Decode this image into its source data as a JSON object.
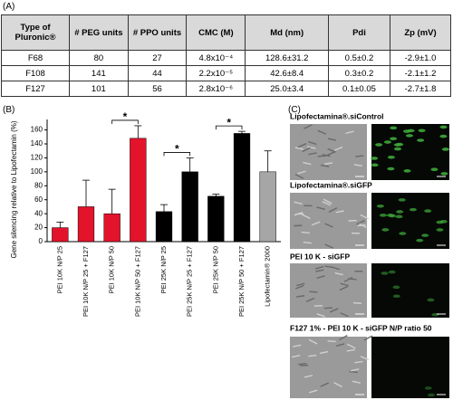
{
  "panels": [
    "(A)",
    "(B)",
    "(C)"
  ],
  "table": {
    "header": [
      "Type of Pluronic®",
      "# PEG units",
      "# PPO units",
      "CMC (M)",
      "Md (nm)",
      "Pdi",
      "Zp (mV)"
    ],
    "rows": [
      [
        "F68",
        "80",
        "27",
        "4.8x10⁻⁴",
        "128.6±31.2",
        "0.5±0.2",
        "-2.9±1.0"
      ],
      [
        "F108",
        "141",
        "44",
        "2.2x10⁻⁵",
        "42.6±8.4",
        "0.3±0.2",
        "-2.1±1.2"
      ],
      [
        "F127",
        "101",
        "56",
        "2.8x10⁻⁶",
        "25.0±3.4",
        "0.1±0.05",
        "-2.7±1.8"
      ]
    ]
  },
  "chart_data": {
    "type": "bar",
    "y_label": "Gene silencing relative  to Lipofectamin (%)",
    "categories": [
      "PEI 10K N/P 25",
      "PEI 10K N/P 25 + F127",
      "PEI 10K N/P 50",
      "PEI 10K N/P 50 + F127",
      "PEI 25K N/P 25",
      "PEI 25K N/P 25 + F127",
      "PEI 25K N/P 50",
      "PEI 25K N/P 50 + F127",
      "Lipofectamin® 2000"
    ],
    "values": [
      20,
      50,
      40,
      148,
      43,
      100,
      65,
      155,
      100
    ],
    "errors": [
      8,
      38,
      35,
      18,
      10,
      20,
      3,
      3,
      30
    ],
    "colors": [
      "#e3132b",
      "#e3132b",
      "#e3132b",
      "#e3132b",
      "#000000",
      "#000000",
      "#000000",
      "#000000",
      "#a6a6a6"
    ],
    "ylim": [
      0,
      175
    ],
    "yticks": [
      0,
      20,
      40,
      60,
      80,
      100,
      120,
      140,
      160
    ],
    "annotations": [
      {
        "text": "*",
        "from": 2,
        "to": 3
      },
      {
        "text": "*",
        "from": 4,
        "to": 5
      },
      {
        "text": "*",
        "from": 6,
        "to": 7
      }
    ]
  },
  "images": {
    "labels": [
      "Lipofectamina®.siControl",
      "Lipofectamina®.siGFP",
      "PEI 10 K  - siGFP",
      "F127 1%  - PEI 10 K - siGFP N/P ratio 50"
    ]
  }
}
